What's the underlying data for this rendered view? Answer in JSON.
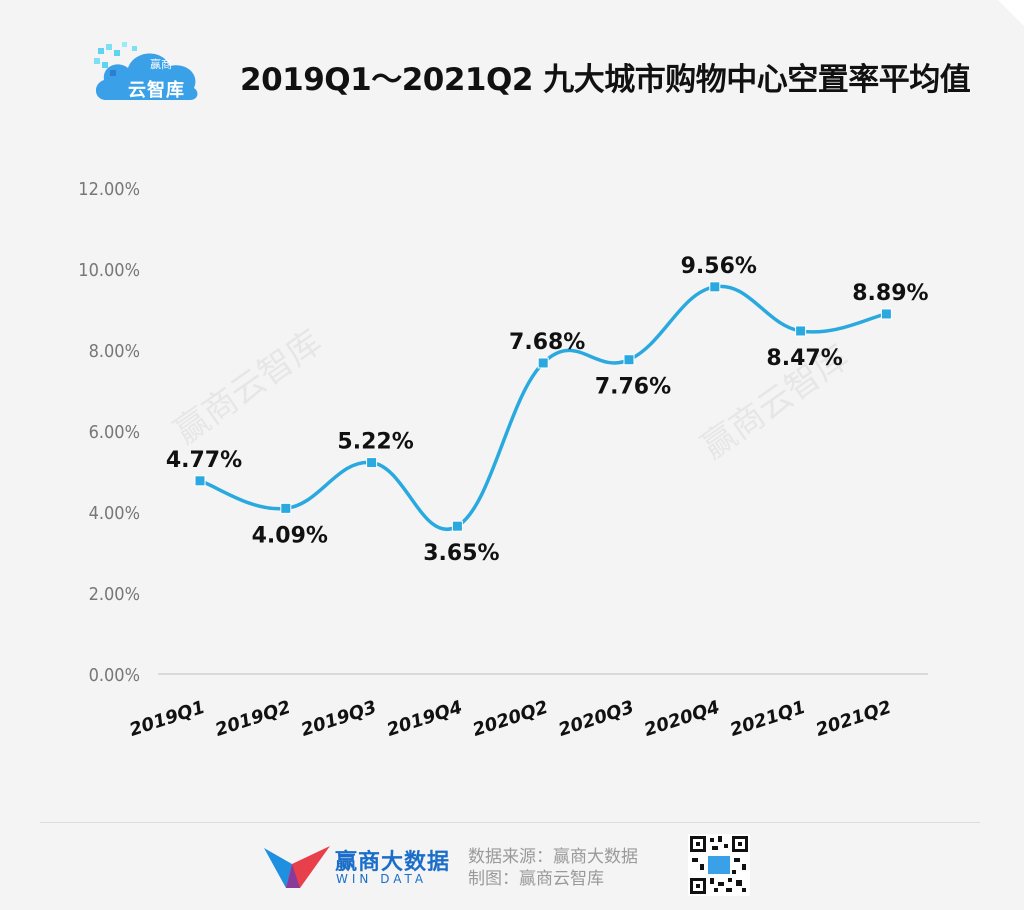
{
  "header": {
    "title": "2019Q1～2021Q2 九大城市购物中心空置率平均值",
    "logo_text": "云智库",
    "logo_small": "赢商"
  },
  "watermarks": [
    "赢商云智库",
    "赢商云智库"
  ],
  "chart_data": {
    "type": "line",
    "title": "2019Q1～2021Q2 九大城市购物中心空置率平均值",
    "categories": [
      "2019Q1",
      "2019Q2",
      "2019Q3",
      "2019Q4",
      "2020Q2",
      "2020Q3",
      "2020Q4",
      "2021Q1",
      "2021Q2"
    ],
    "series": [
      {
        "values": [
          4.77,
          4.09,
          5.22,
          3.65,
          7.68,
          7.76,
          9.56,
          8.47,
          8.89
        ]
      }
    ],
    "data_labels": [
      "4.77%",
      "4.09%",
      "5.22%",
      "3.65%",
      "7.68%",
      "7.76%",
      "9.56%",
      "8.47%",
      "8.89%"
    ],
    "y_ticks": [
      "0.00%",
      "2.00%",
      "4.00%",
      "6.00%",
      "8.00%",
      "10.00%",
      "12.00%"
    ],
    "ylim": [
      0,
      12
    ],
    "grid": false,
    "smooth": true,
    "line_color": "#29a9e0",
    "marker_color": "#29a9e0"
  },
  "footer": {
    "brand_cn": "赢商大数据",
    "brand_en": "WIN DATA",
    "source_line": "数据来源：赢商大数据",
    "made_by_line": "制图：赢商云智库"
  }
}
